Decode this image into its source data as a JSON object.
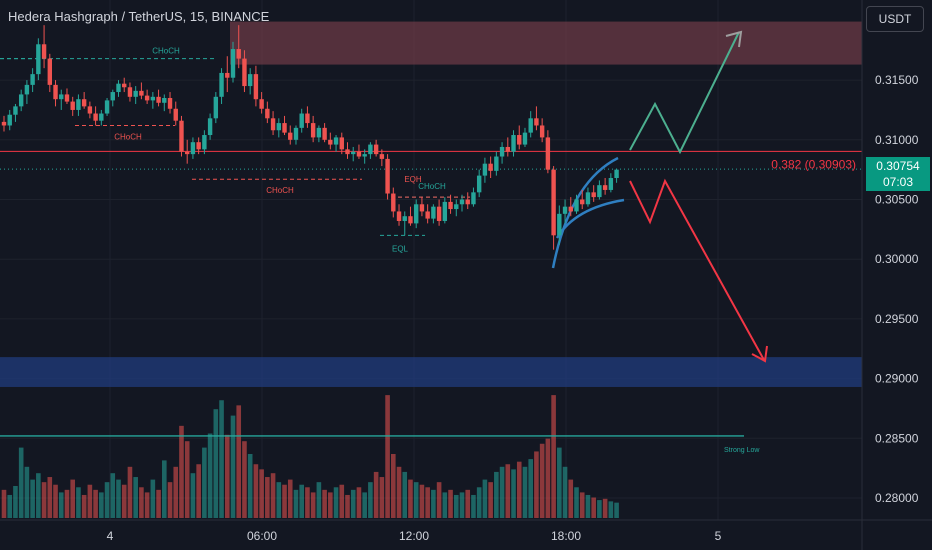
{
  "header": {
    "title": "Hedera Hashgraph / TetherUS, 15, BINANCE",
    "currency": "USDT"
  },
  "price_tag": {
    "price": "0.30754",
    "countdown": "07:03"
  },
  "colors": {
    "background": "#131722",
    "up": "#26a69a",
    "down": "#ef5350",
    "text": "#d1d4dc",
    "supply_zone": "#6b3a45",
    "demand_zone": "#1f3a78",
    "fib_line": "#f23645",
    "arrow_up": "#4caf8f",
    "arrow_down": "#f23645",
    "channel": "#2f7fc1",
    "strong_low": "#26a69a"
  },
  "chart_data": {
    "type": "candlestick",
    "symbol": "Hedera Hashgraph / TetherUS",
    "interval": "15",
    "exchange": "BINANCE",
    "ylim": [
      0.2778,
      0.32
    ],
    "y_ticks": [
      "0.31500",
      "0.31000",
      "0.30500",
      "0.30000",
      "0.29500",
      "0.29000",
      "0.28500",
      "0.28000"
    ],
    "x_ticks": [
      "4",
      "06:00",
      "12:00",
      "18:00",
      "5"
    ],
    "last_price": 0.30754,
    "fib_level": {
      "label": "0.382 (0.30903)",
      "value": 0.30903
    },
    "strong_low": {
      "label": "Strong Low",
      "value": 0.2852
    },
    "supply_zone": [
      0.3163,
      0.3199
    ],
    "demand_zone": [
      0.2893,
      0.2918
    ],
    "annotations": [
      {
        "label": "CHoCH",
        "value": 0.3168
      },
      {
        "label": "CHoCH",
        "value": 0.3112
      },
      {
        "label": "CHoCH",
        "value": 0.3067
      },
      {
        "label": "CHoCH",
        "value": 0.3052
      },
      {
        "label": "EQH",
        "value": 0.3052
      },
      {
        "label": "EQL",
        "value": 0.302
      }
    ],
    "projections": {
      "bullish_target": 0.3192,
      "bearish_target": 0.2918
    },
    "candles": [
      [
        0.3115,
        0.312,
        0.3107,
        0.3112
      ],
      [
        0.3112,
        0.3125,
        0.3108,
        0.3121
      ],
      [
        0.3121,
        0.313,
        0.3115,
        0.3128
      ],
      [
        0.3128,
        0.3142,
        0.3124,
        0.3138
      ],
      [
        0.3138,
        0.315,
        0.313,
        0.3146
      ],
      [
        0.3146,
        0.316,
        0.314,
        0.3155
      ],
      [
        0.3155,
        0.3185,
        0.315,
        0.318
      ],
      [
        0.318,
        0.3196,
        0.316,
        0.3168
      ],
      [
        0.3168,
        0.3172,
        0.314,
        0.3146
      ],
      [
        0.3146,
        0.315,
        0.3128,
        0.3134
      ],
      [
        0.3134,
        0.3142,
        0.3125,
        0.3138
      ],
      [
        0.3138,
        0.3143,
        0.313,
        0.3132
      ],
      [
        0.3132,
        0.3136,
        0.312,
        0.3125
      ],
      [
        0.3125,
        0.3138,
        0.312,
        0.3134
      ],
      [
        0.3134,
        0.314,
        0.3126,
        0.3128
      ],
      [
        0.3128,
        0.3132,
        0.3118,
        0.3122
      ],
      [
        0.3122,
        0.3128,
        0.3112,
        0.3116
      ],
      [
        0.3116,
        0.3125,
        0.3112,
        0.3122
      ],
      [
        0.3122,
        0.3135,
        0.312,
        0.3133
      ],
      [
        0.3133,
        0.3142,
        0.3128,
        0.314
      ],
      [
        0.314,
        0.315,
        0.3136,
        0.3147
      ],
      [
        0.3147,
        0.3152,
        0.314,
        0.3144
      ],
      [
        0.3144,
        0.3148,
        0.3132,
        0.3136
      ],
      [
        0.3136,
        0.3145,
        0.313,
        0.3141
      ],
      [
        0.3141,
        0.3148,
        0.3134,
        0.3137
      ],
      [
        0.3137,
        0.3142,
        0.313,
        0.3133
      ],
      [
        0.3133,
        0.314,
        0.3126,
        0.3136
      ],
      [
        0.3136,
        0.3142,
        0.3128,
        0.3131
      ],
      [
        0.3131,
        0.3138,
        0.3124,
        0.3135
      ],
      [
        0.3135,
        0.314,
        0.3122,
        0.3126
      ],
      [
        0.3126,
        0.3132,
        0.3112,
        0.3116
      ],
      [
        0.3116,
        0.312,
        0.3086,
        0.309
      ],
      [
        0.309,
        0.31,
        0.308,
        0.3088
      ],
      [
        0.3088,
        0.3102,
        0.3084,
        0.3098
      ],
      [
        0.3098,
        0.3102,
        0.3088,
        0.3092
      ],
      [
        0.3092,
        0.3108,
        0.3088,
        0.3104
      ],
      [
        0.3104,
        0.3122,
        0.31,
        0.3118
      ],
      [
        0.3118,
        0.314,
        0.3114,
        0.3136
      ],
      [
        0.3136,
        0.316,
        0.313,
        0.3156
      ],
      [
        0.3156,
        0.317,
        0.314,
        0.3152
      ],
      [
        0.3152,
        0.3182,
        0.3148,
        0.3176
      ],
      [
        0.3176,
        0.3196,
        0.316,
        0.3168
      ],
      [
        0.3168,
        0.3175,
        0.314,
        0.3145
      ],
      [
        0.3145,
        0.316,
        0.3138,
        0.3155
      ],
      [
        0.3155,
        0.3162,
        0.3128,
        0.3134
      ],
      [
        0.3134,
        0.314,
        0.3122,
        0.3126
      ],
      [
        0.3126,
        0.3132,
        0.3114,
        0.3118
      ],
      [
        0.3118,
        0.3124,
        0.3104,
        0.3108
      ],
      [
        0.3108,
        0.3118,
        0.3102,
        0.3114
      ],
      [
        0.3114,
        0.312,
        0.3104,
        0.3106
      ],
      [
        0.3106,
        0.3112,
        0.3096,
        0.31
      ],
      [
        0.31,
        0.3112,
        0.3096,
        0.311
      ],
      [
        0.311,
        0.3126,
        0.3106,
        0.3122
      ],
      [
        0.3122,
        0.3128,
        0.311,
        0.3114
      ],
      [
        0.3114,
        0.312,
        0.3098,
        0.3102
      ],
      [
        0.3102,
        0.3112,
        0.3098,
        0.311
      ],
      [
        0.311,
        0.3114,
        0.3098,
        0.31
      ],
      [
        0.31,
        0.3106,
        0.3092,
        0.3096
      ],
      [
        0.3096,
        0.3104,
        0.309,
        0.3102
      ],
      [
        0.3102,
        0.3106,
        0.3088,
        0.3092
      ],
      [
        0.3092,
        0.3098,
        0.3084,
        0.3088
      ],
      [
        0.3088,
        0.3094,
        0.3082,
        0.309
      ],
      [
        0.309,
        0.3096,
        0.3084,
        0.3086
      ],
      [
        0.3086,
        0.3092,
        0.308,
        0.3088
      ],
      [
        0.3088,
        0.3098,
        0.3084,
        0.3096
      ],
      [
        0.3096,
        0.31,
        0.3086,
        0.3088
      ],
      [
        0.3088,
        0.3092,
        0.3078,
        0.3084
      ],
      [
        0.3084,
        0.3088,
        0.305,
        0.3055
      ],
      [
        0.3055,
        0.306,
        0.3035,
        0.304
      ],
      [
        0.304,
        0.3046,
        0.3028,
        0.3032
      ],
      [
        0.3032,
        0.304,
        0.302,
        0.3036
      ],
      [
        0.3036,
        0.3044,
        0.3028,
        0.303
      ],
      [
        0.303,
        0.305,
        0.3026,
        0.3046
      ],
      [
        0.3046,
        0.3052,
        0.3036,
        0.304
      ],
      [
        0.304,
        0.3046,
        0.303,
        0.3034
      ],
      [
        0.3034,
        0.3046,
        0.303,
        0.3044
      ],
      [
        0.3044,
        0.305,
        0.3028,
        0.3032
      ],
      [
        0.3032,
        0.3052,
        0.303,
        0.3048
      ],
      [
        0.3048,
        0.3054,
        0.3038,
        0.3042
      ],
      [
        0.3042,
        0.305,
        0.3036,
        0.3046
      ],
      [
        0.3046,
        0.3054,
        0.304,
        0.305
      ],
      [
        0.305,
        0.3056,
        0.3042,
        0.3046
      ],
      [
        0.3046,
        0.306,
        0.3044,
        0.3056
      ],
      [
        0.3056,
        0.3075,
        0.3052,
        0.307
      ],
      [
        0.307,
        0.3085,
        0.3064,
        0.308
      ],
      [
        0.308,
        0.3086,
        0.3068,
        0.3074
      ],
      [
        0.3074,
        0.309,
        0.307,
        0.3086
      ],
      [
        0.3086,
        0.3098,
        0.308,
        0.3094
      ],
      [
        0.3094,
        0.3102,
        0.3086,
        0.309
      ],
      [
        0.309,
        0.3108,
        0.3086,
        0.3104
      ],
      [
        0.3104,
        0.3112,
        0.3092,
        0.3096
      ],
      [
        0.3096,
        0.311,
        0.3094,
        0.3106
      ],
      [
        0.3106,
        0.3124,
        0.3102,
        0.3118
      ],
      [
        0.3118,
        0.3128,
        0.3108,
        0.3112
      ],
      [
        0.3112,
        0.3118,
        0.3098,
        0.3102
      ],
      [
        0.3102,
        0.3108,
        0.3072,
        0.3075
      ],
      [
        0.3075,
        0.3078,
        0.3008,
        0.302
      ],
      [
        0.302,
        0.3045,
        0.3012,
        0.3038
      ],
      [
        0.3038,
        0.305,
        0.303,
        0.3044
      ],
      [
        0.3044,
        0.3052,
        0.3036,
        0.304
      ],
      [
        0.304,
        0.3054,
        0.3038,
        0.305
      ],
      [
        0.305,
        0.3058,
        0.3042,
        0.3046
      ],
      [
        0.3046,
        0.306,
        0.3044,
        0.3056
      ],
      [
        0.3056,
        0.3062,
        0.3048,
        0.3052
      ],
      [
        0.3052,
        0.3066,
        0.305,
        0.3062
      ],
      [
        0.3062,
        0.3068,
        0.3054,
        0.3058
      ],
      [
        0.3058,
        0.3072,
        0.3056,
        0.3068
      ],
      [
        0.3068,
        0.3076,
        0.3064,
        0.3075
      ]
    ],
    "volumes": [
      0.22,
      0.18,
      0.25,
      0.55,
      0.4,
      0.3,
      0.35,
      0.28,
      0.32,
      0.26,
      0.2,
      0.22,
      0.3,
      0.24,
      0.18,
      0.26,
      0.22,
      0.2,
      0.28,
      0.35,
      0.3,
      0.26,
      0.4,
      0.32,
      0.24,
      0.2,
      0.3,
      0.22,
      0.45,
      0.28,
      0.4,
      0.72,
      0.6,
      0.35,
      0.42,
      0.55,
      0.66,
      0.85,
      0.92,
      0.65,
      0.8,
      0.88,
      0.6,
      0.5,
      0.42,
      0.38,
      0.32,
      0.35,
      0.28,
      0.26,
      0.3,
      0.22,
      0.26,
      0.24,
      0.2,
      0.28,
      0.22,
      0.2,
      0.24,
      0.26,
      0.18,
      0.22,
      0.24,
      0.2,
      0.28,
      0.36,
      0.32,
      0.96,
      0.5,
      0.4,
      0.36,
      0.3,
      0.28,
      0.26,
      0.24,
      0.22,
      0.28,
      0.2,
      0.22,
      0.18,
      0.2,
      0.22,
      0.18,
      0.24,
      0.3,
      0.28,
      0.36,
      0.4,
      0.42,
      0.38,
      0.44,
      0.4,
      0.46,
      0.52,
      0.58,
      0.62,
      0.96,
      0.55,
      0.4,
      0.3,
      0.24,
      0.2,
      0.18,
      0.16,
      0.14,
      0.15,
      0.13,
      0.12
    ]
  }
}
